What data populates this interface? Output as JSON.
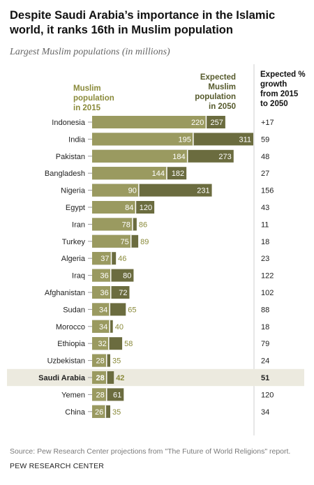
{
  "title": "Despite Saudi Arabia’s importance in the Islamic world, it ranks 16th in Muslim population",
  "subtitle": "Largest Muslim populations (in millions)",
  "source": "Source: Pew Research Center projections from \"The Future of World Religions\" report.",
  "credit": "PEW RESEARCH CENTER",
  "colors": {
    "bar_2015": "#9a9a60",
    "bar_2050": "#6b6c3f",
    "label_2015": "#8a8a3a",
    "label_2050": "#565a2c",
    "highlight_bg": "#eceadf",
    "divider": "#cfcfcf"
  },
  "chart_data": {
    "type": "bar",
    "orientation": "horizontal",
    "legend_labels": {
      "muslim_2015": "Muslim population in 2015",
      "expected_2050": "Expected Muslim population in 2050",
      "growth": "Expected % growth from 2015 to 2050"
    },
    "categories": [
      "Indonesia",
      "India",
      "Pakistan",
      "Bangladesh",
      "Nigeria",
      "Egypt",
      "Iran",
      "Turkey",
      "Algeria",
      "Iraq",
      "Afghanistan",
      "Sudan",
      "Morocco",
      "Ethiopia",
      "Uzbekistan",
      "Saudi Arabia",
      "Yemen",
      "China"
    ],
    "series": [
      {
        "name": "Muslim population in 2015",
        "values": [
          220,
          195,
          184,
          144,
          90,
          84,
          78,
          75,
          37,
          36,
          36,
          34,
          34,
          32,
          28,
          28,
          28,
          26
        ]
      },
      {
        "name": "Expected Muslim population in 2050",
        "values": [
          257,
          311,
          273,
          182,
          231,
          120,
          86,
          89,
          46,
          80,
          72,
          65,
          40,
          58,
          35,
          42,
          61,
          35
        ]
      }
    ],
    "growth_labels": [
      "+17",
      "59",
      "48",
      "27",
      "156",
      "43",
      "11",
      "18",
      "23",
      "122",
      "102",
      "88",
      "18",
      "79",
      "24",
      "51",
      "120",
      "34"
    ],
    "highlight_category": "Saudi Arabia",
    "xlim": [
      0,
      311
    ]
  }
}
